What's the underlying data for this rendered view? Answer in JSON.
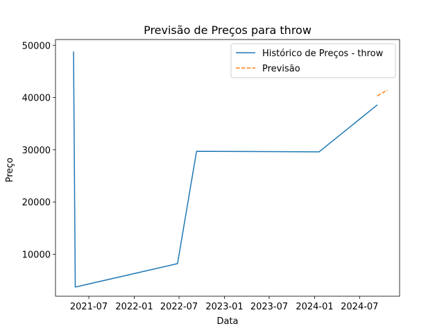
{
  "chart_data": {
    "type": "line",
    "title": "Previsão de Preços para throw",
    "xlabel": "Data",
    "ylabel": "Preço",
    "x_ticks": [
      "2021-07",
      "2022-01",
      "2022-07",
      "2023-01",
      "2023-07",
      "2024-01",
      "2024-07"
    ],
    "y_ticks": [
      10000,
      20000,
      30000,
      40000,
      50000
    ],
    "xlim": [
      "2021-02-16",
      "2024-12-10"
    ],
    "ylim": [
      1950,
      51100
    ],
    "legend_position": "top-right",
    "series": [
      {
        "name": "Histórico de Preços - throw",
        "style": "solid",
        "color": "#1f77b4",
        "points": [
          {
            "x": "2021-04-30",
            "y": 48800
          },
          {
            "x": "2021-05-07",
            "y": 3700
          },
          {
            "x": "2022-06-25",
            "y": 8200
          },
          {
            "x": "2022-09-10",
            "y": 29700
          },
          {
            "x": "2024-01-19",
            "y": 29600
          },
          {
            "x": "2024-09-11",
            "y": 38600
          }
        ]
      },
      {
        "name": "Previsão",
        "style": "dashed",
        "color": "#ff7f0e",
        "points": [
          {
            "x": "2024-09-11",
            "y": 40300
          },
          {
            "x": "2024-09-25",
            "y": 40700
          },
          {
            "x": "2024-10-09",
            "y": 41100
          },
          {
            "x": "2024-10-23",
            "y": 41400
          }
        ]
      }
    ]
  }
}
